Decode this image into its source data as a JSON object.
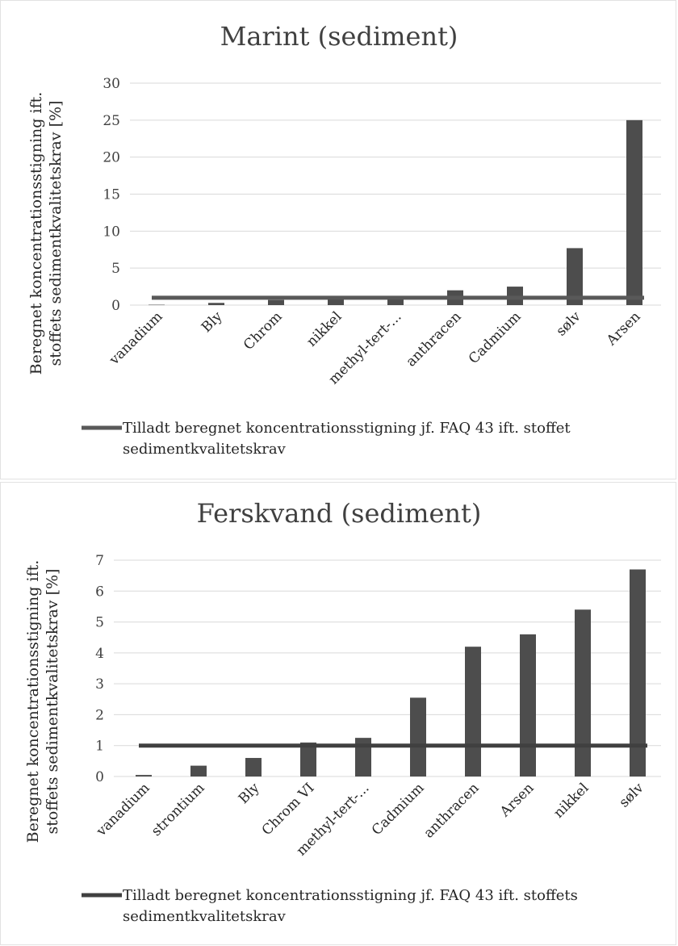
{
  "chart_data": [
    {
      "type": "bar",
      "title": "Marint (sediment)",
      "ylabel": "Beregnet koncentrationsstigning ift. stoffets sedimentkvalitetskrav [%]",
      "xlabel": "",
      "ylim": [
        0,
        30
      ],
      "yticks": [
        0,
        5,
        10,
        15,
        20,
        25,
        30
      ],
      "grid": true,
      "legend_position": "bottom",
      "categories": [
        "vanadium",
        "Bly",
        "Chrom",
        "nikkel",
        "methyl-tert-...",
        "anthracen",
        "Cadmium",
        "sølv",
        "Arsen"
      ],
      "series": [
        {
          "kind": "bar",
          "values": [
            0.05,
            0.3,
            0.7,
            0.9,
            1.0,
            2.0,
            2.5,
            7.7,
            25.0
          ],
          "color": "#4d4d4d"
        },
        {
          "kind": "line",
          "name": "Tilladt beregnet koncentrationsstigning jf. FAQ 43 ift. stoffet sedimentkvalitetskrav",
          "value": 1.0,
          "color": "#595959"
        }
      ]
    },
    {
      "type": "bar",
      "title": "Ferskvand (sediment)",
      "ylabel": "Beregnet koncentrationsstigning ift. stoffets sedimentkvalitetskrav [%]",
      "xlabel": "",
      "ylim": [
        0,
        7
      ],
      "yticks": [
        0,
        1,
        2,
        3,
        4,
        5,
        6,
        7
      ],
      "grid": true,
      "legend_position": "bottom",
      "categories": [
        "vanadium",
        "strontium",
        "Bly",
        "Chrom VI",
        "methyl-tert-...",
        "Cadmium",
        "anthracen",
        "Arsen",
        "nikkel",
        "sølv"
      ],
      "series": [
        {
          "kind": "bar",
          "values": [
            0.05,
            0.35,
            0.6,
            1.1,
            1.25,
            2.55,
            4.2,
            4.6,
            5.4,
            6.7
          ],
          "color": "#4d4d4d"
        },
        {
          "kind": "line",
          "name": "Tilladt beregnet koncentrationsstigning jf. FAQ 43 ift. stoffets sedimentkvalitetskrav",
          "value": 1.0,
          "color": "#404040"
        }
      ]
    }
  ]
}
